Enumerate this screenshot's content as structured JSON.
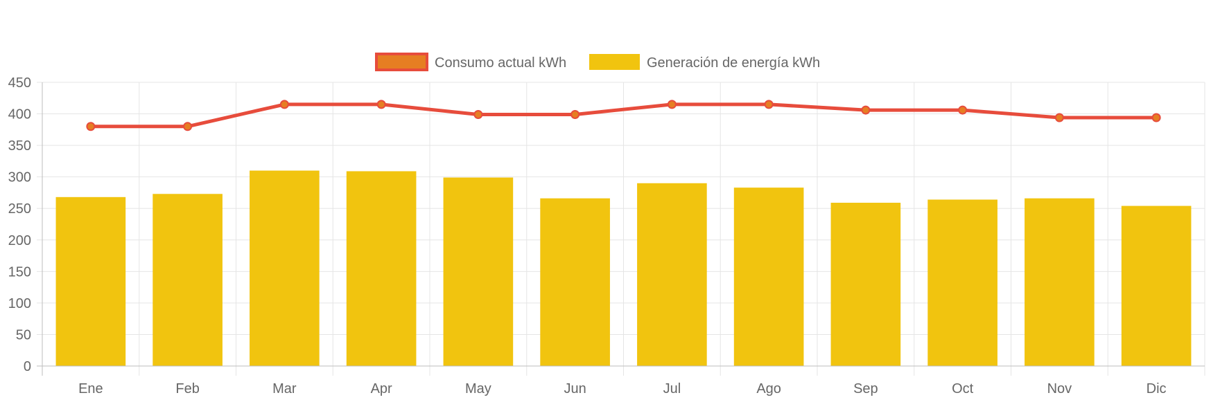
{
  "chart_data": {
    "type": "bar",
    "categories": [
      "Ene",
      "Feb",
      "Mar",
      "Apr",
      "May",
      "Jun",
      "Jul",
      "Ago",
      "Sep",
      "Oct",
      "Nov",
      "Dic"
    ],
    "series": [
      {
        "name": "Consumo actual kWh",
        "type": "line",
        "values": [
          380,
          380,
          415,
          415,
          399,
          399,
          415,
          415,
          406,
          406,
          394,
          394
        ],
        "color": "#e74c3c",
        "point_color": "#e67e22"
      },
      {
        "name": "Generación de energía kWh",
        "type": "bar",
        "values": [
          268,
          273,
          310,
          309,
          299,
          266,
          290,
          283,
          259,
          264,
          266,
          254
        ],
        "color": "#f1c40f"
      }
    ],
    "yticks": [
      "0",
      "50",
      "100",
      "150",
      "200",
      "250",
      "300",
      "350",
      "400",
      "450"
    ],
    "ylim": [
      0,
      450
    ],
    "grid": true,
    "legend_position": "top"
  }
}
